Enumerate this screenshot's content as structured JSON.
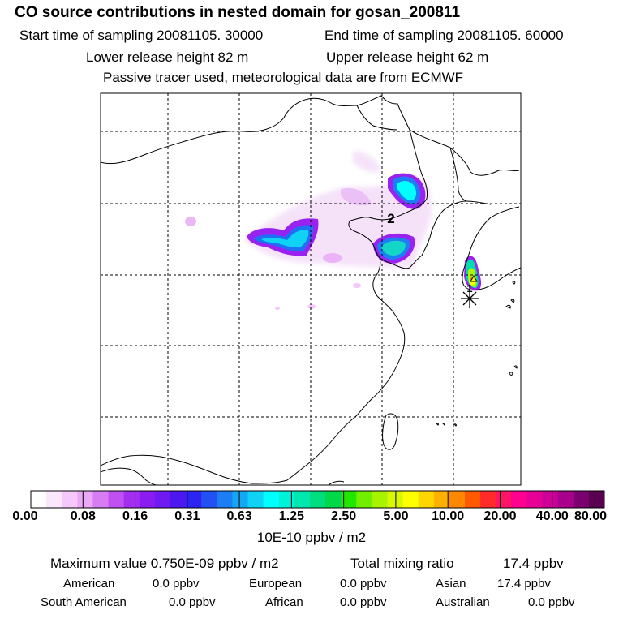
{
  "header": {
    "title": "CO  source contributions in nested domain for gosan_200811",
    "start": "Start time of sampling 20081105. 30000",
    "end": "End time of sampling 20081105. 60000",
    "lower": "Lower release height   82 m",
    "upper": "Upper release height   62 m",
    "tracer": "Passive tracer used, meteorological data are from ECMWF"
  },
  "map": {
    "labels": [
      "2",
      "1"
    ]
  },
  "colorbar": {
    "ticks": [
      "0.00",
      "0.08",
      "0.16",
      "0.31",
      "0.63",
      "1.25",
      "2.50",
      "5.00",
      "10.00",
      "20.00",
      "40.00",
      "80.00"
    ],
    "unit": "10E-10 ppbv / m2",
    "colors": [
      "#ffffff",
      "#fbe6fb",
      "#f4c8f8",
      "#eaa8f6",
      "#d77cf3",
      "#c050f2",
      "#a22ff0",
      "#8a1cf1",
      "#6f1af0",
      "#4c18f0",
      "#2d24f2",
      "#2250f3",
      "#1d7ef4",
      "#12a8f6",
      "#0fd2f4",
      "#00ffff",
      "#00f2d8",
      "#00e8b0",
      "#00dd80",
      "#00d84a",
      "#22e600",
      "#70f000",
      "#a8f400",
      "#d8f800",
      "#ffff00",
      "#ffd600",
      "#ffb000",
      "#ff8800",
      "#ff5a00",
      "#ff2a2a",
      "#ff1466",
      "#ff0090",
      "#e60096",
      "#cc0099",
      "#a8008c",
      "#7a0070",
      "#5a0050"
    ]
  },
  "summary": {
    "max_label": "Maximum value  0.750E-09 ppbv / m2",
    "total_label": "Total mixing ratio",
    "total_value": "17.4 ppbv",
    "regions": [
      {
        "name": "American",
        "value": "0.0 ppbv"
      },
      {
        "name": "European",
        "value": "0.0 ppbv"
      },
      {
        "name": "Asian",
        "value": "17.4 ppbv"
      },
      {
        "name": "South American",
        "value": "0.0 ppbv"
      },
      {
        "name": "African",
        "value": "0.0 ppbv"
      },
      {
        "name": "Australian",
        "value": "0.0 ppbv"
      }
    ]
  }
}
